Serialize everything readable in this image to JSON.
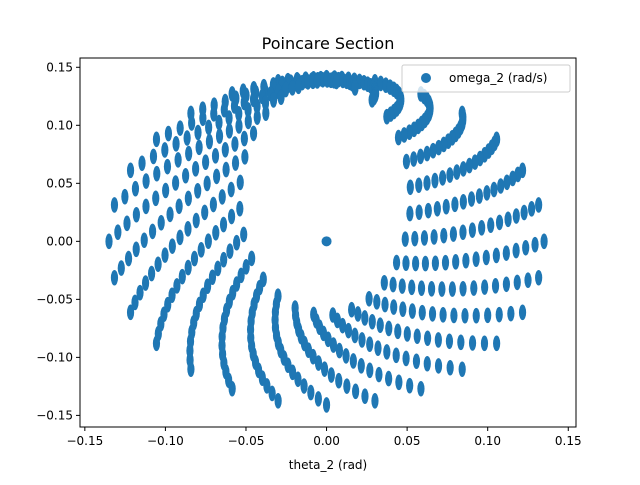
{
  "chart_data": {
    "type": "scatter",
    "title": "Poincare Section",
    "xlabel": "theta_2 (rad)",
    "ylabel": "",
    "xlim": [
      -0.153,
      0.1548
    ],
    "ylim": [
      -0.16,
      0.158
    ],
    "xticks": [
      -0.15,
      -0.1,
      -0.05,
      0.0,
      0.05,
      0.1,
      0.15
    ],
    "xtick_labels": [
      "−0.15",
      "−0.10",
      "−0.05",
      "0.00",
      "0.05",
      "0.10",
      "0.15"
    ],
    "yticks": [
      -0.15,
      -0.1,
      -0.05,
      0.0,
      0.05,
      0.1,
      0.15
    ],
    "ytick_labels": [
      "−0.15",
      "−0.10",
      "−0.05",
      "0.00",
      "0.05",
      "0.10",
      "0.15"
    ],
    "grid": false,
    "legend_position": "upper right",
    "marker": "circle",
    "series": [
      {
        "name": "omega_2 (rad/s)",
        "color": "#1f77b4",
        "description": "toroidal orbit cross-section: loops of points filling an elliptical band around an inner cavity, plus a fixed point at origin",
        "outer_radius": [
          0.135,
          0.141
        ],
        "inner_radius": [
          0.046,
          0.0978
        ],
        "inner_center": [
          -0.001,
          0.0406
        ],
        "points_sampled": [
          [
            0.0,
            0.0
          ],
          [
            -0.135,
            0.0
          ],
          [
            0.135,
            0.0
          ],
          [
            0.0,
            -0.141
          ],
          [
            0.0,
            0.141
          ],
          [
            -0.0955,
            0.0997
          ],
          [
            0.0955,
            0.0997
          ],
          [
            -0.0955,
            -0.0997
          ],
          [
            0.0955,
            -0.0997
          ],
          [
            -0.047,
            0.0
          ],
          [
            0.045,
            0.0
          ],
          [
            -0.03,
            -0.055
          ],
          [
            0.03,
            -0.055
          ],
          [
            0.0,
            -0.057
          ]
        ]
      }
    ]
  }
}
